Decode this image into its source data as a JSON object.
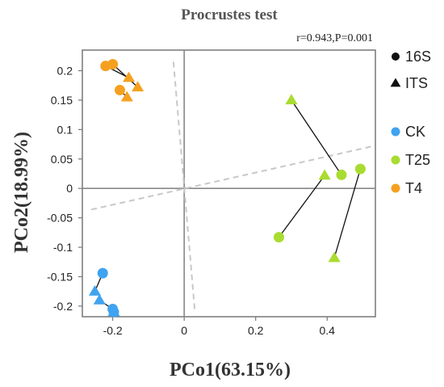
{
  "chart_data": {
    "type": "scatter",
    "title": "Procrustes test",
    "stats_text": "r=0.943,P=0.001",
    "xlabel": "PCo1(63.15%)",
    "ylabel": "PCo2(18.99%)",
    "xlim": [
      -0.285,
      0.535
    ],
    "ylim": [
      -0.218,
      0.235
    ],
    "x_ticks": [
      {
        "value": -0.2,
        "label": "-0.2"
      },
      {
        "value": 0,
        "label": "0"
      },
      {
        "value": 0.2,
        "label": "0.2"
      },
      {
        "value": 0.4,
        "label": "0.4"
      }
    ],
    "y_ticks": [
      {
        "value": 0.2,
        "label": "0.2"
      },
      {
        "value": 0.15,
        "label": "0.15"
      },
      {
        "value": 0.1,
        "label": "0.1"
      },
      {
        "value": 0.05,
        "label": "0.05"
      },
      {
        "value": 0,
        "label": "0"
      },
      {
        "value": -0.05,
        "label": "-0.05"
      },
      {
        "value": -0.1,
        "label": "-0.1"
      },
      {
        "value": -0.15,
        "label": "-0.15"
      },
      {
        "value": -0.2,
        "label": "-0.2"
      }
    ],
    "grid": false,
    "legend_position": "right",
    "shape_legend": [
      {
        "label": "16S",
        "shape": "circle"
      },
      {
        "label": "ITS",
        "shape": "triangle"
      }
    ],
    "groups": [
      {
        "name": "CK",
        "color": "#3fa3f0"
      },
      {
        "name": "T25",
        "color": "#a9dc30"
      },
      {
        "name": "T4",
        "color": "#f5a11f"
      }
    ],
    "rotation_axes": [
      {
        "from": [
          -0.03,
          0.215
        ],
        "to": [
          0.03,
          -0.21
        ]
      },
      {
        "from": [
          -0.26,
          -0.036
        ],
        "to": [
          0.53,
          0.072
        ]
      }
    ],
    "pairs": [
      {
        "group": "CK",
        "circle": [
          -0.228,
          -0.144
        ],
        "triangle": [
          -0.25,
          -0.175
        ]
      },
      {
        "group": "CK",
        "circle": [
          -0.2,
          -0.205
        ],
        "triangle": [
          -0.237,
          -0.19
        ]
      },
      {
        "group": "CK",
        "circle": [
          -0.197,
          -0.21
        ],
        "triangle": [
          -0.197,
          -0.21
        ]
      },
      {
        "group": "T25",
        "circle": [
          0.44,
          0.023
        ],
        "triangle": [
          0.3,
          0.15
        ]
      },
      {
        "group": "T25",
        "circle": [
          0.265,
          -0.083
        ],
        "triangle": [
          0.393,
          0.022
        ]
      },
      {
        "group": "T25",
        "circle": [
          0.493,
          0.033
        ],
        "triangle": [
          0.42,
          -0.118
        ]
      },
      {
        "group": "T4",
        "circle": [
          -0.22,
          0.208
        ],
        "triangle": [
          -0.155,
          0.188
        ]
      },
      {
        "group": "T4",
        "circle": [
          -0.2,
          0.211
        ],
        "triangle": [
          -0.13,
          0.172
        ]
      },
      {
        "group": "T4",
        "circle": [
          -0.18,
          0.167
        ],
        "triangle": [
          -0.16,
          0.155
        ]
      }
    ]
  }
}
